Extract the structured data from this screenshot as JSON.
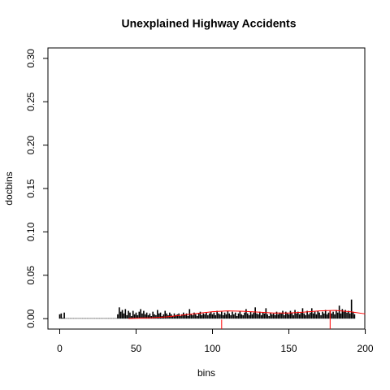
{
  "chart_data": {
    "type": "histogram-lines",
    "title": "Unexplained Highway Accidents",
    "x_label": "bins",
    "y_label": "docbins",
    "x": [
      0,
      1,
      2,
      3,
      4,
      5,
      6,
      7,
      8,
      9,
      10,
      11,
      12,
      13,
      14,
      15,
      16,
      17,
      18,
      19,
      20,
      21,
      22,
      23,
      24,
      25,
      26,
      27,
      28,
      29,
      30,
      31,
      32,
      33,
      34,
      35,
      36,
      37,
      38,
      39,
      40,
      41,
      42,
      43,
      44,
      45,
      46,
      47,
      48,
      49,
      50,
      51,
      52,
      53,
      54,
      55,
      56,
      57,
      58,
      59,
      60,
      61,
      62,
      63,
      64,
      65,
      66,
      67,
      68,
      69,
      70,
      71,
      72,
      73,
      74,
      75,
      76,
      77,
      78,
      79,
      80,
      81,
      82,
      83,
      84,
      85,
      86,
      87,
      88,
      89,
      90,
      91,
      92,
      93,
      94,
      95,
      96,
      97,
      98,
      99,
      100,
      101,
      102,
      103,
      104,
      105,
      106,
      107,
      108,
      109,
      110,
      111,
      112,
      113,
      114,
      115,
      116,
      117,
      118,
      119,
      120,
      121,
      122,
      123,
      124,
      125,
      126,
      127,
      128,
      129,
      130,
      131,
      132,
      133,
      134,
      135,
      136,
      137,
      138,
      139,
      140,
      141,
      142,
      143,
      144,
      145,
      146,
      147,
      148,
      149,
      150,
      151,
      152,
      153,
      154,
      155,
      156,
      157,
      158,
      159,
      160,
      161,
      162,
      163,
      164,
      165,
      166,
      167,
      168,
      169,
      170,
      171,
      172,
      173,
      174,
      175,
      176,
      177,
      178,
      179,
      180,
      181,
      182,
      183,
      184,
      185,
      186,
      187,
      188,
      189,
      190,
      191,
      192,
      193
    ],
    "values": [
      0.005,
      0.006,
      0.001,
      0.007,
      0.0005,
      0.0005,
      0.0005,
      0.0005,
      0.0005,
      0.0005,
      0.0005,
      0.0005,
      0.0005,
      0.0005,
      0.0005,
      0.0005,
      0.0005,
      0.0005,
      0.0005,
      0.0005,
      0.0005,
      0.0005,
      0.0005,
      0.0005,
      0.0005,
      0.0005,
      0.0005,
      0.0005,
      0.0005,
      0.0005,
      0.0005,
      0.0005,
      0.0005,
      0.0005,
      0.0005,
      0.0005,
      0.0005,
      0.0005,
      0.005,
      0.013,
      0.008,
      0.01,
      0.006,
      0.011,
      0.004,
      0.009,
      0.007,
      0.003,
      0.009,
      0.005,
      0.007,
      0.004,
      0.008,
      0.011,
      0.006,
      0.009,
      0.005,
      0.007,
      0.004,
      0.006,
      0.003,
      0.008,
      0.005,
      0.004,
      0.01,
      0.006,
      0.007,
      0.003,
      0.005,
      0.009,
      0.006,
      0.004,
      0.007,
      0.005,
      0.003,
      0.006,
      0.004,
      0.005,
      0.006,
      0.003,
      0.005,
      0.007,
      0.004,
      0.006,
      0.003,
      0.011,
      0.005,
      0.004,
      0.007,
      0.005,
      0.003,
      0.006,
      0.008,
      0.004,
      0.006,
      0.005,
      0.007,
      0.004,
      0.006,
      0.008,
      0.005,
      0.007,
      0.004,
      0.009,
      0.006,
      0.005,
      0.008,
      0.004,
      0.007,
      0.005,
      0.009,
      0.006,
      0.004,
      0.008,
      0.005,
      0.007,
      0.003,
      0.006,
      0.009,
      0.005,
      0.004,
      0.007,
      0.011,
      0.006,
      0.004,
      0.008,
      0.005,
      0.007,
      0.013,
      0.006,
      0.005,
      0.008,
      0.004,
      0.007,
      0.006,
      0.012,
      0.005,
      0.003,
      0.007,
      0.005,
      0.006,
      0.004,
      0.008,
      0.005,
      0.007,
      0.006,
      0.009,
      0.004,
      0.008,
      0.006,
      0.005,
      0.009,
      0.007,
      0.004,
      0.01,
      0.006,
      0.008,
      0.005,
      0.007,
      0.012,
      0.006,
      0.004,
      0.009,
      0.005,
      0.007,
      0.012,
      0.006,
      0.008,
      0.005,
      0.009,
      0.007,
      0.004,
      0.008,
      0.006,
      0.01,
      0.005,
      0.007,
      0.009,
      0.006,
      0.008,
      0.005,
      0.01,
      0.007,
      0.015,
      0.006,
      0.011,
      0.008,
      0.01,
      0.007,
      0.009,
      0.006,
      0.022,
      0.008,
      0.005
    ],
    "color": "#000000",
    "curve": {
      "color": "#ff0000",
      "x": [
        45,
        50,
        60,
        70,
        80,
        90,
        100,
        110,
        120,
        130,
        140,
        150,
        160,
        170,
        180,
        190,
        200
      ],
      "values": [
        0.0,
        0.0005,
        0.001,
        0.002,
        0.004,
        0.006,
        0.008,
        0.009,
        0.0085,
        0.0075,
        0.0065,
        0.0065,
        0.0075,
        0.009,
        0.0095,
        0.008,
        0.0055
      ]
    },
    "vlines": {
      "color": "#ff0000",
      "x": [
        106,
        177
      ],
      "values": [
        -0.001,
        0.009
      ]
    },
    "xlim": [
      -7.7,
      199.7
    ],
    "ylim": [
      -0.012,
      0.312
    ],
    "xticks": [
      0,
      50,
      100,
      150,
      200
    ],
    "yticks": [
      {
        "value": 0,
        "label": "0.00"
      },
      {
        "value": 0.05,
        "label": "0.05"
      },
      {
        "value": 0.1,
        "label": "0.10"
      },
      {
        "value": 0.15,
        "label": "0.15"
      },
      {
        "value": 0.2,
        "label": "0.20"
      },
      {
        "value": 0.25,
        "label": "0.25"
      },
      {
        "value": 0.3,
        "label": "0.30"
      }
    ]
  }
}
